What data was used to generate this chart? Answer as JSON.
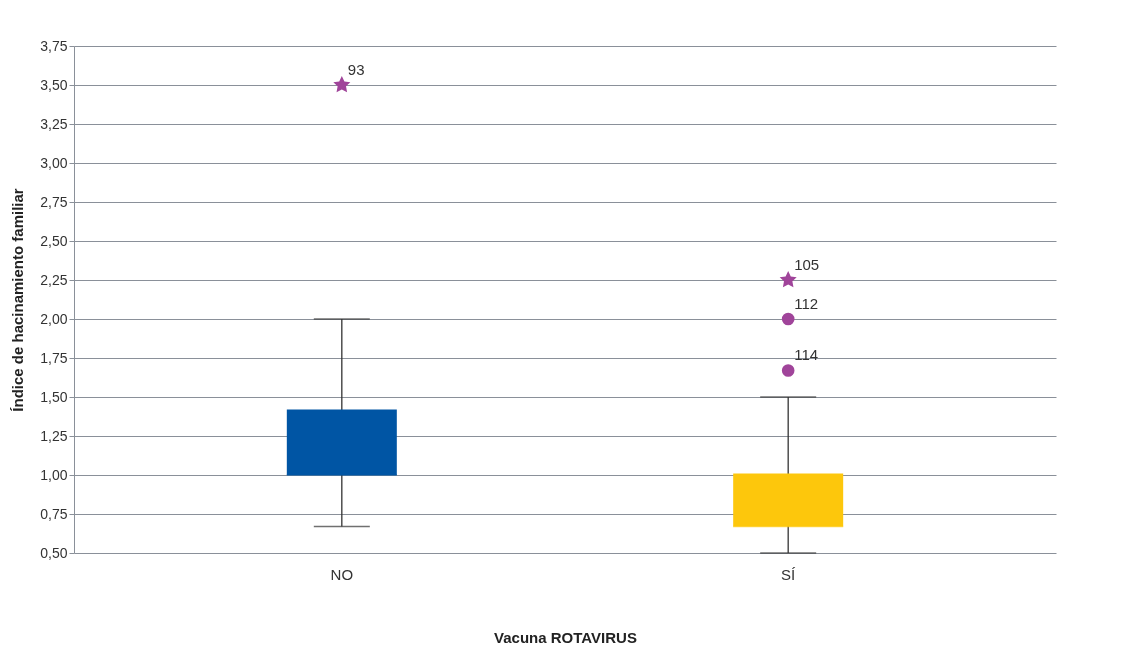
{
  "chart_data": {
    "type": "box",
    "xlabel": "Vacuna ROTAVIRUS",
    "ylabel": "Índice de hacinamiento familiar",
    "categories": [
      "NO",
      "SÍ"
    ],
    "colors": [
      "#0055a4",
      "#fdc70c"
    ],
    "boxes": [
      {
        "low": 0.67,
        "q1": 1.0,
        "median": 1.0,
        "q3": 1.42,
        "high": 2.0
      },
      {
        "low": 0.5,
        "q1": 0.67,
        "median": 0.67,
        "q3": 1.01,
        "high": 1.5
      }
    ],
    "series": [
      {
        "type": "scatter",
        "marker": "star",
        "color": "#a0449a",
        "x": [
          "NO",
          "SÍ"
        ],
        "values": [
          3.5,
          2.25
        ]
      },
      {
        "type": "scatter",
        "marker": "circle",
        "color": "#a0449a",
        "x": [
          "SÍ",
          "SÍ"
        ],
        "values": [
          2.0,
          1.67
        ]
      }
    ],
    "annotations": [
      {
        "text": "93",
        "x": "NO",
        "y": 3.5
      },
      {
        "text": "105",
        "x": "SÍ",
        "y": 2.25
      },
      {
        "text": "112",
        "x": "SÍ",
        "y": 2.0
      },
      {
        "text": "114",
        "x": "SÍ",
        "y": 1.67
      }
    ],
    "ylim": [
      0.5,
      3.75
    ],
    "yticks": [
      {
        "value": 0.5,
        "label": "0,50"
      },
      {
        "value": 0.75,
        "label": "0,75"
      },
      {
        "value": 1.0,
        "label": "1,00"
      },
      {
        "value": 1.25,
        "label": "1,25"
      },
      {
        "value": 1.5,
        "label": "1,50"
      },
      {
        "value": 1.75,
        "label": "1,75"
      },
      {
        "value": 2.0,
        "label": "2,00"
      },
      {
        "value": 2.25,
        "label": "2,25"
      },
      {
        "value": 2.5,
        "label": "2,50"
      },
      {
        "value": 2.75,
        "label": "2,75"
      },
      {
        "value": 3.0,
        "label": "3,00"
      },
      {
        "value": 3.25,
        "label": "3,25"
      },
      {
        "value": 3.5,
        "label": "3,50"
      },
      {
        "value": 3.75,
        "label": "3,75"
      }
    ],
    "grid": "y"
  }
}
